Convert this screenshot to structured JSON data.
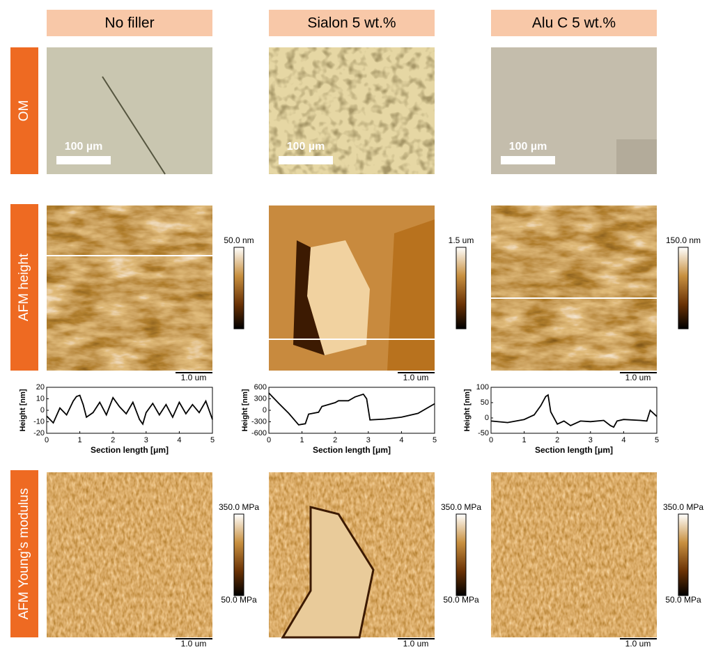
{
  "columns": [
    "No filler",
    "Sialon 5 wt.%",
    "Alu C 5 wt.%"
  ],
  "rows": [
    "OM",
    "AFM height",
    "AFM Young’s modulus"
  ],
  "panels": [
    {
      "om_scale_bar": "100 µm",
      "height_range": "50.0 nm",
      "height_scale_bar": "1.0 um",
      "modulus_max": "350.0 MPa",
      "modulus_min": "50.0 MPa",
      "modulus_scale_bar": "1.0 um"
    },
    {
      "om_scale_bar": "100 µm",
      "height_range": "1.5 um",
      "height_scale_bar": "1.0 um",
      "modulus_max": "350.0 MPa",
      "modulus_min": "50.0 MPa",
      "modulus_scale_bar": "1.0 um"
    },
    {
      "om_scale_bar": "100 µm",
      "height_range": "150.0 nm",
      "height_scale_bar": "1.0 um",
      "modulus_max": "350.0 MPa",
      "modulus_min": "50.0 MPa",
      "modulus_scale_bar": "1.0 um"
    }
  ],
  "chart_data": [
    {
      "type": "line",
      "y_label": "Height [nm]",
      "x_label": "Section length [μm]",
      "color": "#000000",
      "xlim": [
        0,
        5
      ],
      "xticks": [
        0,
        1,
        2,
        3,
        4,
        5
      ],
      "ylim": [
        -20,
        20
      ],
      "yticks": [
        -20,
        -10,
        0,
        10,
        20
      ],
      "x": [
        0,
        0.2,
        0.4,
        0.6,
        0.8,
        0.9,
        1.0,
        1.1,
        1.2,
        1.4,
        1.6,
        1.8,
        2.0,
        2.2,
        2.4,
        2.6,
        2.8,
        2.9,
        3.0,
        3.2,
        3.4,
        3.6,
        3.8,
        4.0,
        4.2,
        4.4,
        4.6,
        4.8,
        5.0
      ],
      "values": [
        -5,
        -11,
        2,
        -4,
        8,
        12,
        13,
        5,
        -6,
        -2,
        7,
        -4,
        11,
        3,
        -3,
        7,
        -8,
        -12,
        -2,
        6,
        -4,
        5,
        -6,
        7,
        -3,
        5,
        -2,
        8,
        -8
      ]
    },
    {
      "type": "line",
      "y_label": "Height [nm]",
      "x_label": "Section length [μm]",
      "color": "#000000",
      "xlim": [
        0,
        5
      ],
      "xticks": [
        0,
        1,
        2,
        3,
        4,
        5
      ],
      "ylim": [
        -600,
        600
      ],
      "yticks": [
        -600,
        -300,
        0,
        300,
        600
      ],
      "x": [
        0,
        0.3,
        0.6,
        0.9,
        1.1,
        1.2,
        1.5,
        1.6,
        2.0,
        2.1,
        2.4,
        2.6,
        2.85,
        2.95,
        3.05,
        3.5,
        4.0,
        4.5,
        5.0
      ],
      "values": [
        450,
        180,
        -80,
        -380,
        -350,
        -100,
        -50,
        100,
        200,
        250,
        250,
        350,
        420,
        300,
        -250,
        -230,
        -180,
        -80,
        170
      ]
    },
    {
      "type": "line",
      "y_label": "Height [nm]",
      "x_label": "Section length [μm]",
      "color": "#000000",
      "xlim": [
        0,
        5
      ],
      "xticks": [
        0,
        1,
        2,
        3,
        4,
        5
      ],
      "ylim": [
        -50,
        100
      ],
      "yticks": [
        -50,
        0,
        50,
        100
      ],
      "x": [
        0,
        0.5,
        1.0,
        1.3,
        1.5,
        1.65,
        1.72,
        1.8,
        2.0,
        2.2,
        2.4,
        2.7,
        3.0,
        3.4,
        3.6,
        3.7,
        3.8,
        4.0,
        4.5,
        4.7,
        4.8,
        4.9,
        5.0
      ],
      "values": [
        -10,
        -15,
        -5,
        10,
        40,
        70,
        75,
        20,
        -20,
        -10,
        -25,
        -10,
        -12,
        -8,
        -25,
        -30,
        -10,
        -5,
        -8,
        -10,
        25,
        15,
        5
      ]
    }
  ]
}
